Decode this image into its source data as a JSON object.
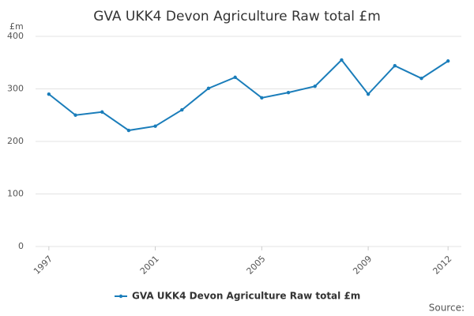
{
  "chart_data": {
    "type": "line",
    "title": "GVA UKK4 Devon Agriculture Raw total £m",
    "y_label": "£m",
    "source": "Source:",
    "x": [
      1997,
      1998,
      1999,
      2000,
      2001,
      2002,
      2003,
      2004,
      2005,
      2006,
      2007,
      2008,
      2009,
      2010,
      2011,
      2012
    ],
    "series": [
      {
        "name": "GVA UKK4 Devon Agriculture Raw total £m",
        "color": "#1a7dba",
        "values": [
          290,
          250,
          256,
          221,
          229,
          260,
          301,
          322,
          283,
          293,
          305,
          355,
          290,
          344,
          320,
          353
        ]
      }
    ],
    "xlim": [
      1996.5,
      2012.5
    ],
    "xticks": [
      1997,
      2001,
      2005,
      2009,
      2012
    ],
    "ylim": [
      0,
      400
    ],
    "yticks": [
      0,
      100,
      200,
      300,
      400
    ],
    "grid": true
  }
}
